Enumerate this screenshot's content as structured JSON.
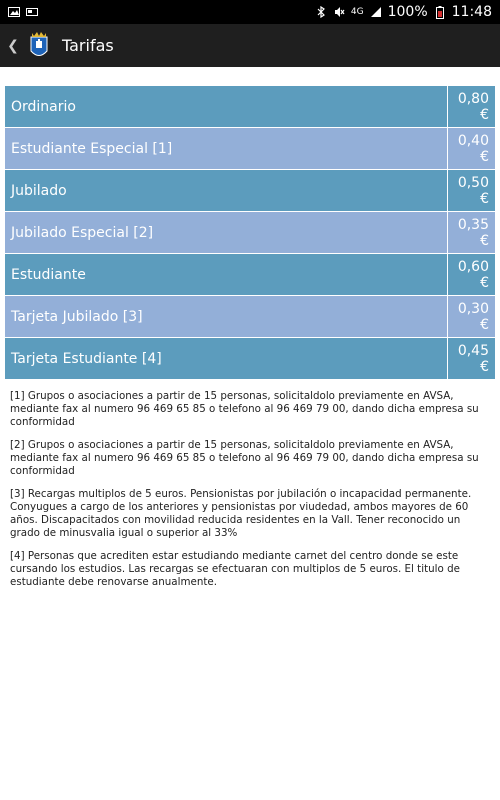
{
  "status_bar": {
    "signal": "4G",
    "battery": "100%",
    "time": "11:48"
  },
  "app_bar": {
    "title": "Tarifas"
  },
  "tarifas": [
    {
      "name": "Ordinario",
      "price": "0,80 €"
    },
    {
      "name": "Estudiante Especial   [1]",
      "price": "0,40 €"
    },
    {
      "name": "Jubilado",
      "price": "0,50 €"
    },
    {
      "name": "Jubilado Especial   [2]",
      "price": "0,35 €"
    },
    {
      "name": "Estudiante",
      "price": "0,60 €"
    },
    {
      "name": "Tarjeta Jubilado  [3]",
      "price": "0,30 €"
    },
    {
      "name": "Tarjeta Estudiante  [4]",
      "price": "0,45 €"
    }
  ],
  "notes": [
    "[1] Grupos o asociaciones a partir de 15 personas, solicitaldolo previamente en AVSA, mediante fax al numero 96 469 65 85 o telefono al 96 469 79 00, dando dicha empresa su conformidad",
    "[2] Grupos o asociaciones a partir de 15 personas, solicitaldolo previamente en AVSA, mediante fax al numero 96 469 65 85 o telefono al 96 469 79 00, dando dicha empresa su conformidad",
    "[3] Recargas multiplos de 5 euros. Pensionistas por jubilación o incapacidad permanente. Conyugues a cargo de los anteriores y pensionistas por viudedad, ambos mayores de 60 años. Discapacitados con movilidad reducida residentes en la Vall. Tener reconocido un grado de minusvalia igual o superior al 33%",
    "[4] Personas que acrediten estar estudiando mediante carnet del centro donde se este cursando los estudios. Las recargas se efectuaran con multiplos de 5 euros. El titulo de estudiante debe renovarse anualmente."
  ],
  "colors": {
    "row_dark": "#5c9cbd",
    "row_light": "#93afd8",
    "app_bar": "#1f1f1f",
    "status_bar": "#000000"
  },
  "icons": {
    "status_left": [
      "image-icon",
      "card-icon"
    ],
    "status_right": [
      "bluetooth-icon",
      "mute-icon",
      "signal-icon",
      "battery-icon"
    ],
    "app_bar": [
      "back-icon",
      "app-logo-icon"
    ]
  }
}
